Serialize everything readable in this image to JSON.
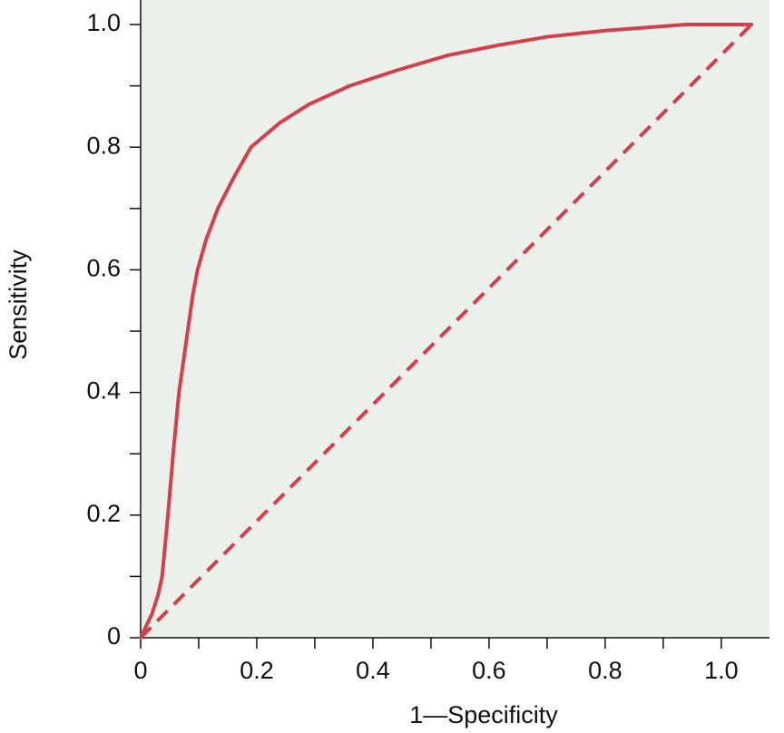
{
  "chart_data": {
    "type": "line",
    "x_label": "1—Specificity",
    "y_label": "Sensitivity",
    "xlim": [
      0,
      1.083
    ],
    "ylim": [
      0,
      1.04
    ],
    "xticks": [
      0,
      0.2,
      0.4,
      0.6,
      0.8,
      {
        "value": 1,
        "label": "1.0"
      }
    ],
    "yticks": [
      0,
      0.2,
      0.4,
      0.6,
      0.8,
      {
        "value": 1,
        "label": "1.0"
      }
    ],
    "xminor_ticks": [
      0.1,
      0.3,
      0.5,
      0.7,
      0.9
    ],
    "yminor_ticks": [
      0.1,
      0.3,
      0.5,
      0.7,
      0.9
    ],
    "background": "#ecf0eb",
    "series": [
      {
        "color": "#d2404b",
        "dash": false,
        "x": [
          0,
          0.01,
          0.02,
          0.03,
          0.037,
          0.042,
          0.047,
          0.056,
          0.066,
          0.078,
          0.09,
          0.098,
          0.113,
          0.133,
          0.16,
          0.19,
          0.24,
          0.29,
          0.36,
          0.44,
          0.53,
          0.62,
          0.7,
          0.8,
          0.94,
          1.052
        ],
        "values": [
          0,
          0.02,
          0.04,
          0.07,
          0.1,
          0.15,
          0.2,
          0.3,
          0.4,
          0.48,
          0.56,
          0.6,
          0.65,
          0.7,
          0.75,
          0.8,
          0.84,
          0.87,
          0.9,
          0.925,
          0.95,
          0.967,
          0.98,
          0.99,
          1.0,
          1.0
        ]
      },
      {
        "color": "#d2404b",
        "dash": true,
        "x": [
          0,
          1.052
        ],
        "values": [
          0,
          1.0
        ]
      }
    ]
  }
}
